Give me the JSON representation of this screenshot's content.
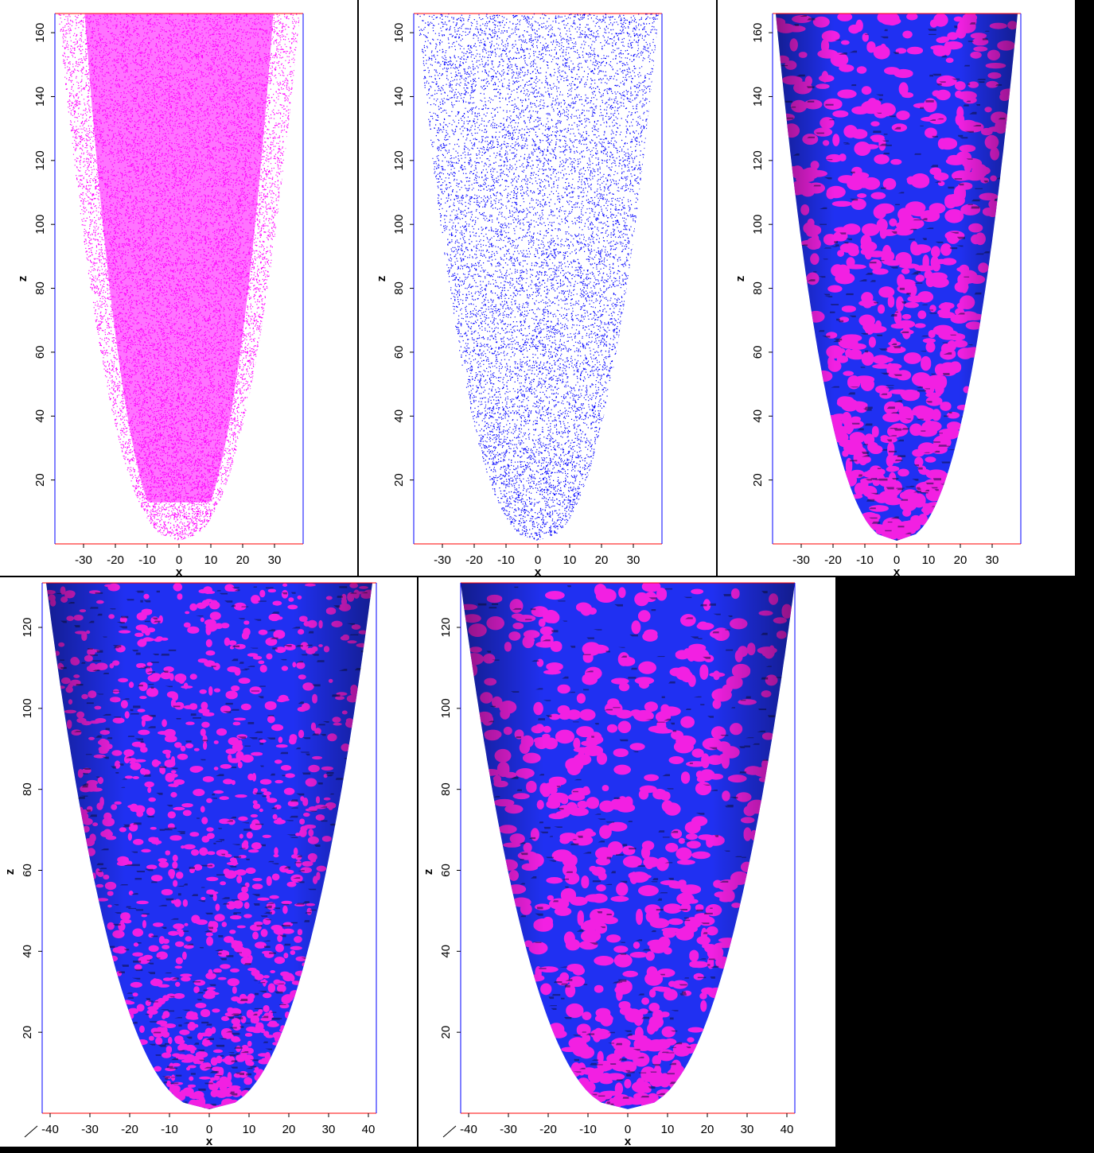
{
  "colors": {
    "magenta": "#ff00ff",
    "blue": "#0000ff",
    "mesh_magenta": "#ff22ee",
    "mesh_blue": "#2233ff",
    "frame_top": "#ff0000",
    "frame_side": "#0000ff"
  },
  "chart_data": [
    {
      "id": "p1",
      "type": "scatter",
      "style": "points",
      "color": "magenta",
      "xlabel": "x",
      "ylabel": "z",
      "xlim": [
        -39,
        39
      ],
      "ylim": [
        0,
        166
      ],
      "xticks": [
        "-30",
        "-20",
        "-10",
        "0",
        "10",
        "20",
        "30"
      ],
      "yticks": [
        "20",
        "40",
        "60",
        "80",
        "100",
        "120",
        "140",
        "160"
      ],
      "x_tick_values": [
        -30,
        -20,
        -10,
        0,
        10,
        20,
        30
      ],
      "y_tick_values": [
        20,
        40,
        60,
        80,
        100,
        120,
        140,
        160
      ],
      "shape_radius_at_top": 38,
      "shape_bottom_z": 1,
      "dense_core": true
    },
    {
      "id": "p2",
      "type": "scatter",
      "style": "points",
      "color": "blue",
      "xlabel": "x",
      "ylabel": "z",
      "xlim": [
        -39,
        39
      ],
      "ylim": [
        0,
        166
      ],
      "xticks": [
        "-30",
        "-20",
        "-10",
        "0",
        "10",
        "20",
        "30"
      ],
      "yticks": [
        "20",
        "40",
        "60",
        "80",
        "100",
        "120",
        "140",
        "160"
      ],
      "x_tick_values": [
        -30,
        -20,
        -10,
        0,
        10,
        20,
        30
      ],
      "y_tick_values": [
        20,
        40,
        60,
        80,
        100,
        120,
        140,
        160
      ],
      "shape_radius_at_top": 38,
      "shape_bottom_z": 1,
      "dense_core": false
    },
    {
      "id": "p3",
      "type": "surface",
      "style": "mesh",
      "colors": [
        "mesh_blue",
        "mesh_magenta"
      ],
      "xlabel": "x",
      "ylabel": "z",
      "xlim": [
        -39,
        39
      ],
      "ylim": [
        0,
        166
      ],
      "xticks": [
        "-30",
        "-20",
        "-10",
        "0",
        "10",
        "20",
        "30"
      ],
      "yticks": [
        "20",
        "40",
        "60",
        "80",
        "100",
        "120",
        "140",
        "160"
      ],
      "x_tick_values": [
        -30,
        -20,
        -10,
        0,
        10,
        20,
        30
      ],
      "y_tick_values": [
        20,
        40,
        60,
        80,
        100,
        120,
        140,
        160
      ],
      "shape_radius_at_top": 38,
      "shape_bottom_z": 1,
      "patch_scale": 1.0
    },
    {
      "id": "p4",
      "type": "surface",
      "style": "mesh",
      "colors": [
        "mesh_blue",
        "mesh_magenta"
      ],
      "xlabel": "x",
      "ylabel": "z",
      "xlim": [
        -42,
        42
      ],
      "ylim": [
        0,
        131
      ],
      "xticks": [
        "-40",
        "-30",
        "-20",
        "-10",
        "0",
        "10",
        "20",
        "30",
        "40"
      ],
      "yticks": [
        "20",
        "40",
        "60",
        "80",
        "100",
        "120"
      ],
      "x_tick_values": [
        -40,
        -30,
        -20,
        -10,
        0,
        10,
        20,
        30,
        40
      ],
      "y_tick_values": [
        20,
        40,
        60,
        80,
        100,
        120
      ],
      "shape_radius_at_top": 41,
      "shape_bottom_z": 1,
      "patch_scale": 0.6
    },
    {
      "id": "p5",
      "type": "surface",
      "style": "mesh",
      "colors": [
        "mesh_blue",
        "mesh_magenta"
      ],
      "xlabel": "x",
      "ylabel": "z",
      "xlim": [
        -42,
        42
      ],
      "ylim": [
        0,
        131
      ],
      "xticks": [
        "-40",
        "-30",
        "-20",
        "-10",
        "0",
        "10",
        "20",
        "30",
        "40"
      ],
      "yticks": [
        "20",
        "40",
        "60",
        "80",
        "100",
        "120"
      ],
      "x_tick_values": [
        -40,
        -30,
        -20,
        -10,
        0,
        10,
        20,
        30,
        40
      ],
      "y_tick_values": [
        20,
        40,
        60,
        80,
        100,
        120
      ],
      "shape_radius_at_top": 42,
      "shape_bottom_z": 1,
      "patch_scale": 1.0
    }
  ]
}
